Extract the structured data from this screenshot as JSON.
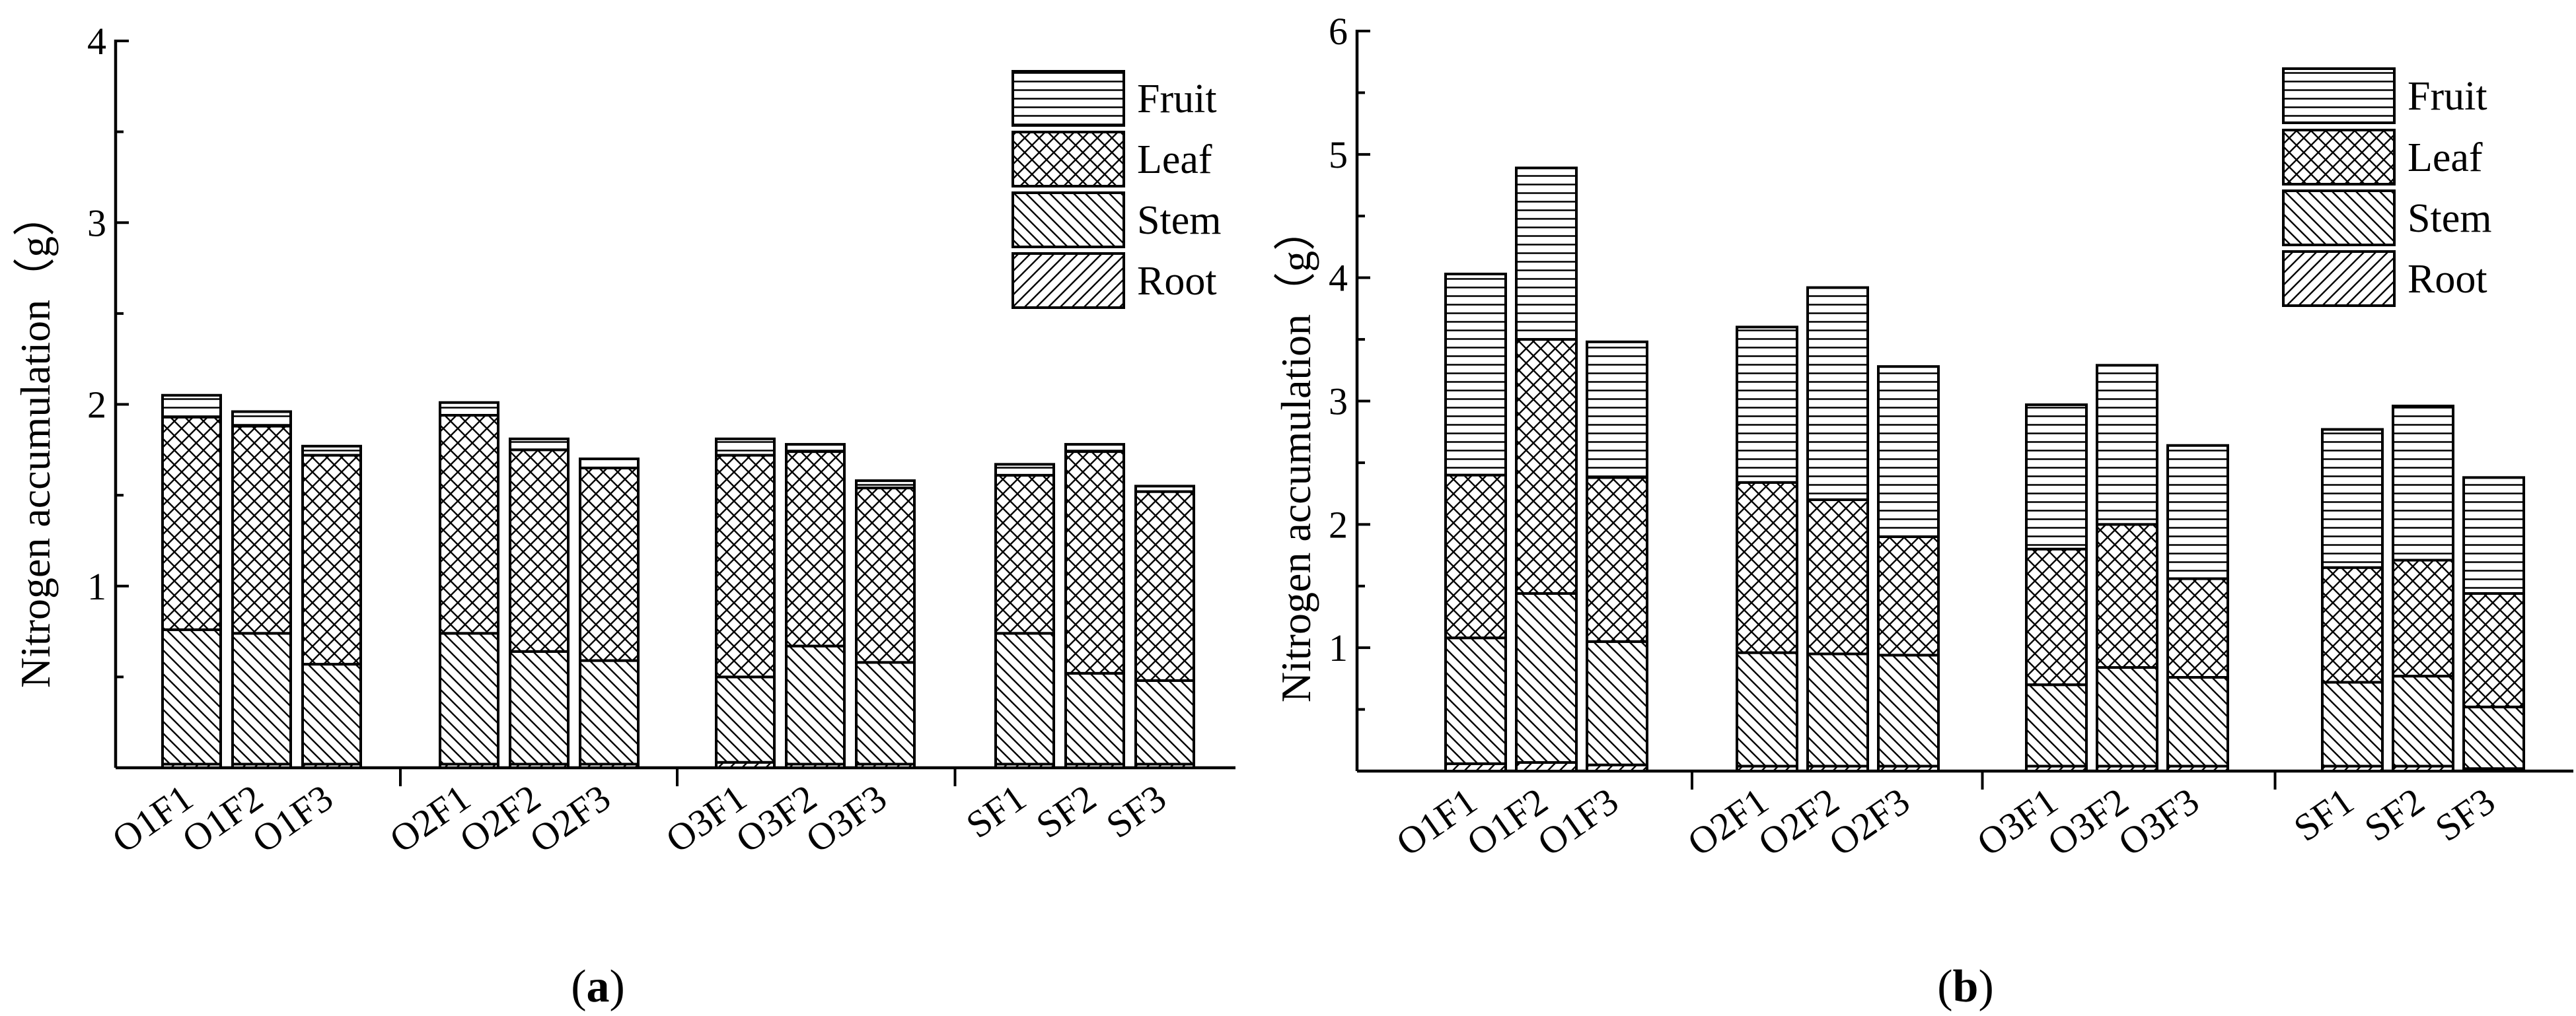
{
  "panel_labels": [
    {
      "open": "(",
      "letter": "a",
      "close": ")"
    },
    {
      "open": "(",
      "letter": "b",
      "close": ")"
    }
  ],
  "chart_data": [
    {
      "type": "bar",
      "stacked": true,
      "panel": "a",
      "title": "",
      "xlabel": "",
      "ylabel": "Nitrogen accumulation（g）",
      "ylim": [
        0,
        4
      ],
      "yticks": [
        1,
        2,
        3,
        4
      ],
      "top_tick_label": "4",
      "grid": false,
      "legend_position": "top-right",
      "categories": [
        "O1F1",
        "O1F2",
        "O1F3",
        "O2F1",
        "O2F2",
        "O2F3",
        "O3F1",
        "O3F2",
        "O3F3",
        "SF1",
        "SF2",
        "SF3"
      ],
      "groups": [
        [
          "O1F1",
          "O1F2",
          "O1F3"
        ],
        [
          "O2F1",
          "O2F2",
          "O2F3"
        ],
        [
          "O3F1",
          "O3F2",
          "O3F3"
        ],
        [
          "SF1",
          "SF2",
          "SF3"
        ]
      ],
      "series": [
        {
          "name": "Root",
          "pattern": "diagonal-up",
          "values": [
            0.02,
            0.02,
            0.02,
            0.02,
            0.02,
            0.02,
            0.03,
            0.02,
            0.02,
            0.02,
            0.02,
            0.02
          ]
        },
        {
          "name": "Stem",
          "pattern": "diagonal-down",
          "values": [
            0.74,
            0.72,
            0.55,
            0.72,
            0.62,
            0.57,
            0.47,
            0.65,
            0.56,
            0.72,
            0.5,
            0.46
          ]
        },
        {
          "name": "Leaf",
          "pattern": "crosshatch",
          "values": [
            1.17,
            1.14,
            1.15,
            1.2,
            1.11,
            1.06,
            1.22,
            1.07,
            0.96,
            0.87,
            1.22,
            1.04
          ]
        },
        {
          "name": "Fruit",
          "pattern": "horizontal",
          "values": [
            0.12,
            0.08,
            0.05,
            0.07,
            0.06,
            0.05,
            0.09,
            0.04,
            0.04,
            0.06,
            0.04,
            0.03
          ]
        }
      ],
      "totals": [
        2.05,
        1.96,
        1.77,
        2.01,
        1.81,
        1.7,
        1.81,
        1.78,
        1.58,
        1.67,
        1.78,
        1.55
      ],
      "legend": [
        "Fruit",
        "Leaf",
        "Stem",
        "Root"
      ]
    },
    {
      "type": "bar",
      "stacked": true,
      "panel": "b",
      "title": "",
      "xlabel": "",
      "ylabel": "Nitrogen accumulation（g）",
      "ylim": [
        0,
        6
      ],
      "yticks": [
        1,
        2,
        3,
        4,
        5,
        6
      ],
      "top_tick_label": "6",
      "grid": false,
      "legend_position": "top-right",
      "categories": [
        "O1F1",
        "O1F2",
        "O1F3",
        "O2F1",
        "O2F2",
        "O2F3",
        "O3F1",
        "O3F2",
        "O3F3",
        "SF1",
        "SF2",
        "SF3"
      ],
      "groups": [
        [
          "O1F1",
          "O1F2",
          "O1F3"
        ],
        [
          "O2F1",
          "O2F2",
          "O2F3"
        ],
        [
          "O3F1",
          "O3F2",
          "O3F3"
        ],
        [
          "SF1",
          "SF2",
          "SF3"
        ]
      ],
      "series": [
        {
          "name": "Root",
          "pattern": "diagonal-up",
          "values": [
            0.06,
            0.07,
            0.05,
            0.04,
            0.04,
            0.04,
            0.04,
            0.04,
            0.04,
            0.04,
            0.04,
            0.02
          ]
        },
        {
          "name": "Stem",
          "pattern": "diagonal-down",
          "values": [
            1.02,
            1.37,
            1.0,
            0.92,
            0.91,
            0.9,
            0.66,
            0.8,
            0.72,
            0.68,
            0.73,
            0.5
          ]
        },
        {
          "name": "Leaf",
          "pattern": "crosshatch",
          "values": [
            1.32,
            2.06,
            1.33,
            1.38,
            1.25,
            0.96,
            1.1,
            1.16,
            0.8,
            0.93,
            0.94,
            0.92
          ]
        },
        {
          "name": "Fruit",
          "pattern": "horizontal",
          "values": [
            1.63,
            1.39,
            1.1,
            1.26,
            1.72,
            1.38,
            1.17,
            1.29,
            1.08,
            1.12,
            1.25,
            0.94
          ]
        }
      ],
      "totals": [
        4.03,
        4.89,
        3.48,
        3.6,
        3.92,
        3.28,
        2.97,
        3.29,
        2.64,
        2.77,
        2.96,
        2.38
      ],
      "legend": [
        "Fruit",
        "Leaf",
        "Stem",
        "Root"
      ]
    }
  ]
}
